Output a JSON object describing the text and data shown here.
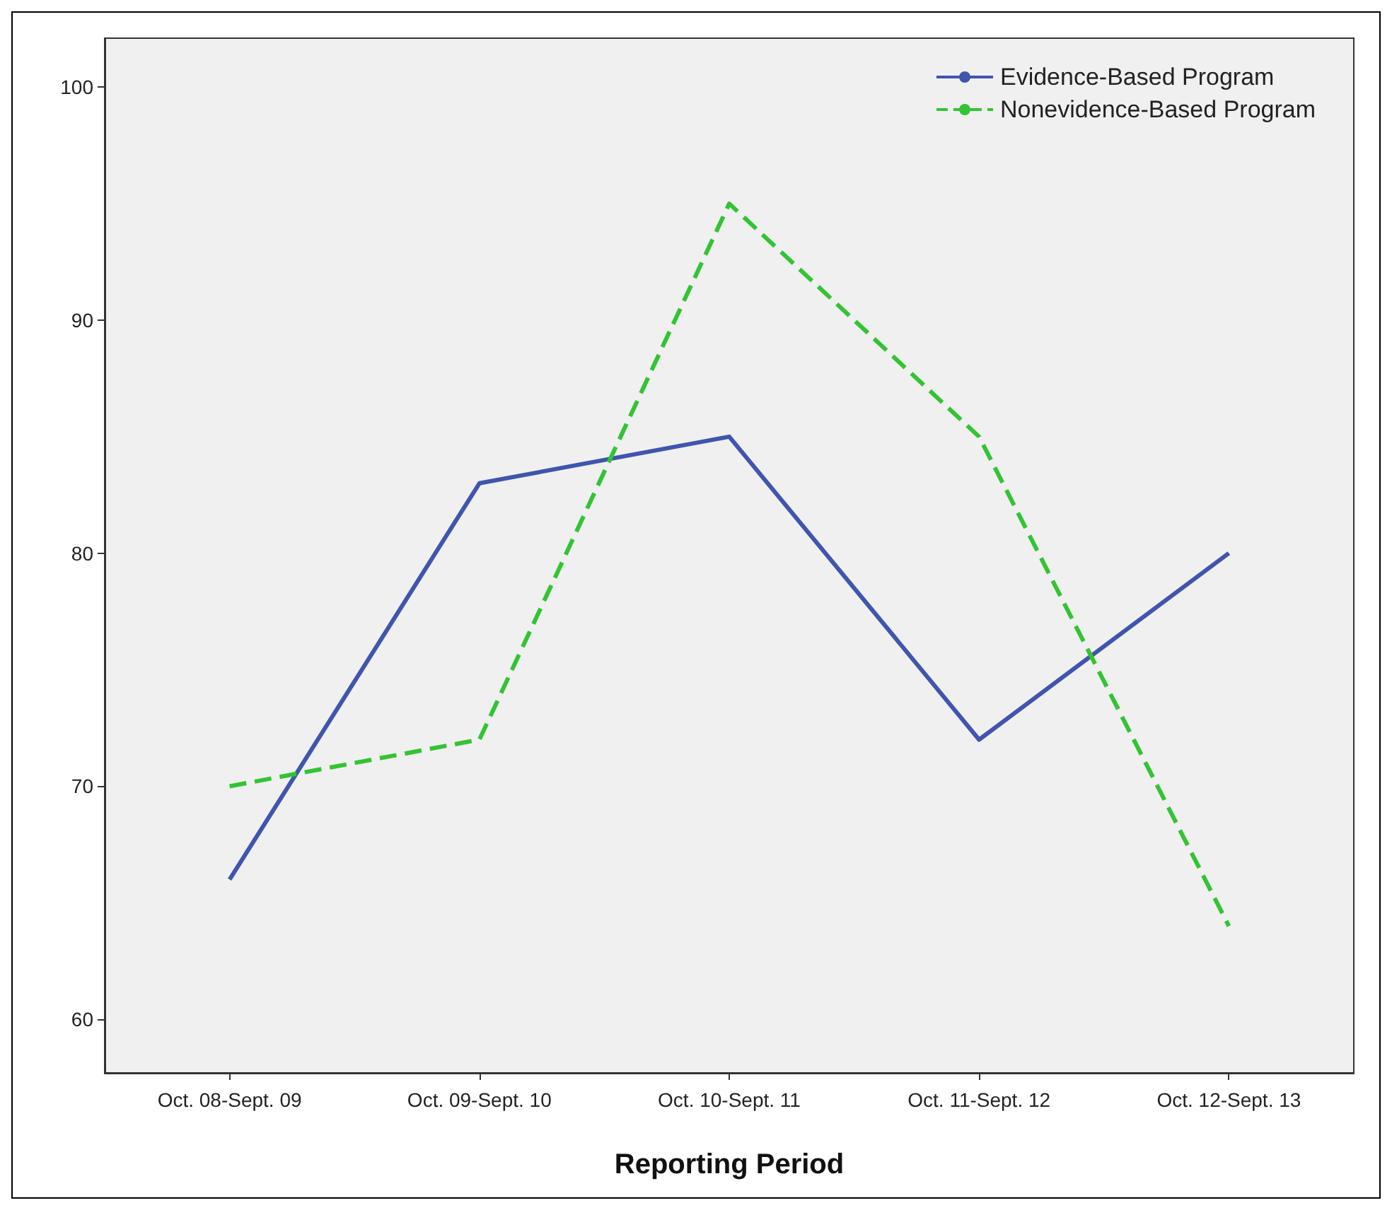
{
  "chart_data": {
    "type": "line",
    "xlabel": "Reporting Period",
    "categories": [
      "Oct. 08-Sept. 09",
      "Oct. 09-Sept. 10",
      "Oct. 10-Sept. 11",
      "Oct. 11-Sept. 12",
      "Oct. 12-Sept. 13"
    ],
    "series": [
      {
        "name": "Evidence-Based Program",
        "color": "#3f55ae",
        "values": [
          66,
          83,
          85,
          72,
          80
        ],
        "line_style": "solid"
      },
      {
        "name": "Nonevidence-Based Program",
        "color": "#33c433",
        "values": [
          70,
          72,
          95,
          85,
          64
        ],
        "line_style": "dashed"
      }
    ],
    "ylim": [
      57.7,
      102.1
    ],
    "yticks": [
      60,
      70,
      80,
      90,
      100
    ],
    "grid": false,
    "legend": "top right",
    "marker": "none"
  }
}
